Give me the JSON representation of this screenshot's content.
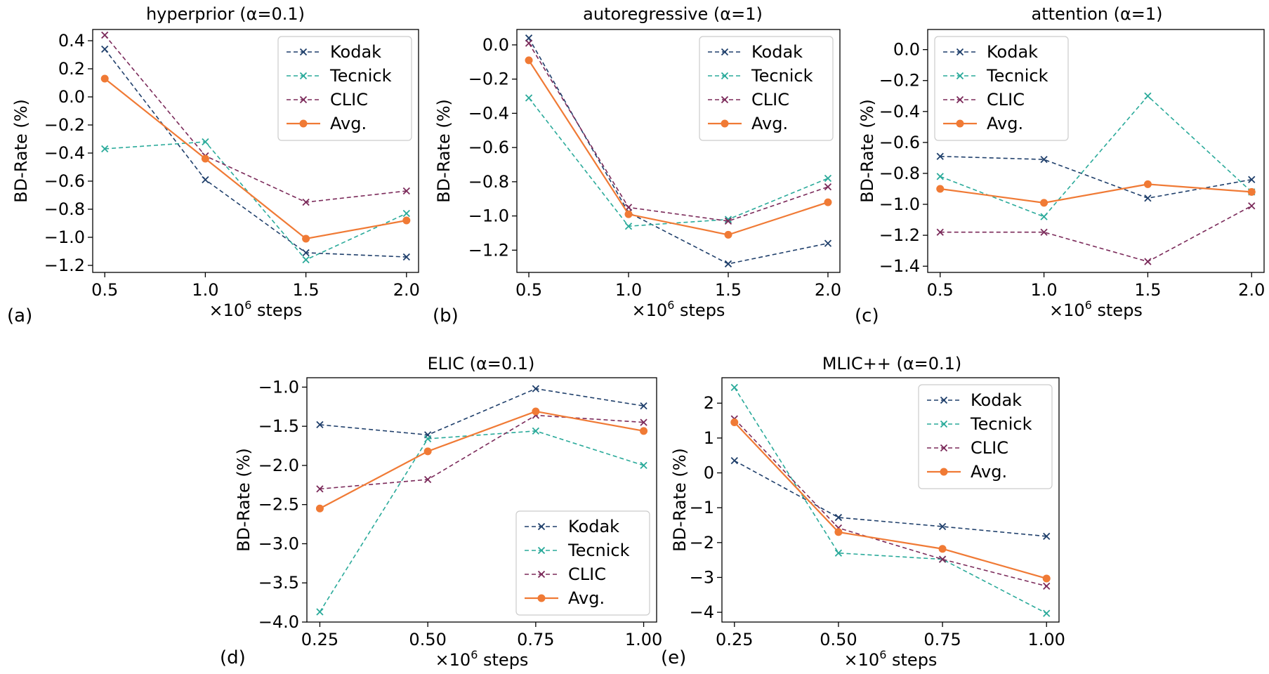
{
  "figure": {
    "panels": [
      {
        "letter": "(a)",
        "title": "hyperprior (α=0.1)"
      },
      {
        "letter": "(b)",
        "title": "autoregressive (α=1)"
      },
      {
        "letter": "(c)",
        "title": "attention (α=1)"
      },
      {
        "letter": "(d)",
        "title": "ELIC (α=0.1)"
      },
      {
        "letter": "(e)",
        "title": "MLIC++ (α=0.1)"
      }
    ]
  },
  "series_styles": {
    "Kodak": {
      "color": "#1f3f6b",
      "dash": true,
      "marker": "x"
    },
    "Tecnick": {
      "color": "#2aaa9a",
      "dash": true,
      "marker": "x"
    },
    "CLIC": {
      "color": "#7b2a5a",
      "dash": true,
      "marker": "x"
    },
    "Avg.": {
      "color": "#f07a35",
      "dash": false,
      "marker": "o"
    }
  },
  "chart_data": [
    {
      "type": "line",
      "title": "hyperprior (α=0.1)",
      "xlabel": "×10^6 steps",
      "ylabel": "BD-Rate (%)",
      "x": [
        0.5,
        1.0,
        1.5,
        2.0
      ],
      "xticks": [
        "0.5",
        "1.0",
        "1.5",
        "2.0"
      ],
      "yticks": [
        "0.4",
        "0.2",
        "0.0",
        "−0.2",
        "−0.4",
        "−0.6",
        "−0.8",
        "−1.0",
        "−1.2"
      ],
      "ytick_values": [
        0.4,
        0.2,
        0.0,
        -0.2,
        -0.4,
        -0.6,
        -0.8,
        -1.0,
        -1.2
      ],
      "xlim": [
        0.44,
        2.06
      ],
      "ylim": [
        -1.25,
        0.48
      ],
      "legend": "top-right",
      "series": [
        {
          "name": "Kodak",
          "values": [
            0.34,
            -0.59,
            -1.11,
            -1.14
          ]
        },
        {
          "name": "Tecnick",
          "values": [
            -0.37,
            -0.32,
            -1.16,
            -0.83
          ]
        },
        {
          "name": "CLIC",
          "values": [
            0.44,
            -0.42,
            -0.75,
            -0.67
          ]
        },
        {
          "name": "Avg.",
          "values": [
            0.13,
            -0.44,
            -1.01,
            -0.88
          ]
        }
      ]
    },
    {
      "type": "line",
      "title": "autoregressive (α=1)",
      "xlabel": "×10^6 steps",
      "ylabel": "BD-Rate (%)",
      "x": [
        0.5,
        1.0,
        1.5,
        2.0
      ],
      "xticks": [
        "0.5",
        "1.0",
        "1.5",
        "2.0"
      ],
      "yticks": [
        "0.0",
        "−0.2",
        "−0.4",
        "−0.6",
        "−0.8",
        "−1.0",
        "−1.2"
      ],
      "ytick_values": [
        0.0,
        -0.2,
        -0.4,
        -0.6,
        -0.8,
        -1.0,
        -1.2
      ],
      "xlim": [
        0.44,
        2.06
      ],
      "ylim": [
        -1.33,
        0.09
      ],
      "legend": "top-right",
      "series": [
        {
          "name": "Kodak",
          "values": [
            0.04,
            -0.98,
            -1.28,
            -1.16
          ]
        },
        {
          "name": "Tecnick",
          "values": [
            -0.31,
            -1.06,
            -1.02,
            -0.78
          ]
        },
        {
          "name": "CLIC",
          "values": [
            0.01,
            -0.95,
            -1.03,
            -0.83
          ]
        },
        {
          "name": "Avg.",
          "values": [
            -0.09,
            -0.99,
            -1.11,
            -0.92
          ]
        }
      ]
    },
    {
      "type": "line",
      "title": "attention (α=1)",
      "xlabel": "×10^6 steps",
      "ylabel": "BD-Rate (%)",
      "x": [
        0.5,
        1.0,
        1.5,
        2.0
      ],
      "xticks": [
        "0.5",
        "1.0",
        "1.5",
        "2.0"
      ],
      "yticks": [
        "0.0",
        "−0.2",
        "−0.4",
        "−0.6",
        "−0.8",
        "−1.0",
        "−1.2",
        "−1.4"
      ],
      "ytick_values": [
        0.0,
        -0.2,
        -0.4,
        -0.6,
        -0.8,
        -1.0,
        -1.2,
        -1.4
      ],
      "xlim": [
        0.44,
        2.06
      ],
      "ylim": [
        -1.44,
        0.13
      ],
      "legend": "top-left",
      "series": [
        {
          "name": "Kodak",
          "values": [
            -0.69,
            -0.71,
            -0.96,
            -0.84
          ]
        },
        {
          "name": "Tecnick",
          "values": [
            -0.82,
            -1.08,
            -0.3,
            -0.92
          ]
        },
        {
          "name": "CLIC",
          "values": [
            -1.18,
            -1.18,
            -1.37,
            -1.01
          ]
        },
        {
          "name": "Avg.",
          "values": [
            -0.9,
            -0.99,
            -0.87,
            -0.92
          ]
        }
      ]
    },
    {
      "type": "line",
      "title": "ELIC (α=0.1)",
      "xlabel": "×10^6 steps",
      "ylabel": "BD-Rate (%)",
      "x": [
        0.25,
        0.5,
        0.75,
        1.0
      ],
      "xticks": [
        "0.25",
        "0.50",
        "0.75",
        "1.00"
      ],
      "yticks": [
        "−1.0",
        "−1.5",
        "−2.0",
        "−2.5",
        "−3.0",
        "−3.5",
        "−4.0"
      ],
      "ytick_values": [
        -1.0,
        -1.5,
        -2.0,
        -2.5,
        -3.0,
        -3.5,
        -4.0
      ],
      "xlim": [
        0.22,
        1.03
      ],
      "ylim": [
        -4.0,
        -0.88
      ],
      "legend": "bottom-right",
      "series": [
        {
          "name": "Kodak",
          "values": [
            -1.48,
            -1.61,
            -1.02,
            -1.24
          ]
        },
        {
          "name": "Tecnick",
          "values": [
            -3.87,
            -1.66,
            -1.56,
            -2.0
          ]
        },
        {
          "name": "CLIC",
          "values": [
            -2.3,
            -2.18,
            -1.36,
            -1.45
          ]
        },
        {
          "name": "Avg.",
          "values": [
            -2.55,
            -1.82,
            -1.31,
            -1.56
          ]
        }
      ]
    },
    {
      "type": "line",
      "title": "MLIC++ (α=0.1)",
      "xlabel": "×10^6 steps",
      "ylabel": "BD-Rate (%)",
      "x": [
        0.25,
        0.5,
        0.75,
        1.0
      ],
      "xticks": [
        "0.25",
        "0.50",
        "0.75",
        "1.00"
      ],
      "yticks": [
        "2",
        "1",
        "0",
        "−1",
        "−2",
        "−3",
        "−4"
      ],
      "ytick_values": [
        2,
        1,
        0,
        -1,
        -2,
        -3,
        -4
      ],
      "xlim": [
        0.22,
        1.03
      ],
      "ylim": [
        -4.28,
        2.73
      ],
      "legend": "top-right",
      "series": [
        {
          "name": "Kodak",
          "values": [
            0.35,
            -1.28,
            -1.54,
            -1.82
          ]
        },
        {
          "name": "Tecnick",
          "values": [
            2.45,
            -2.3,
            -2.48,
            -4.03
          ]
        },
        {
          "name": "CLIC",
          "values": [
            1.55,
            -1.58,
            -2.48,
            -3.25
          ]
        },
        {
          "name": "Avg.",
          "values": [
            1.45,
            -1.7,
            -2.18,
            -3.03
          ]
        }
      ]
    }
  ]
}
